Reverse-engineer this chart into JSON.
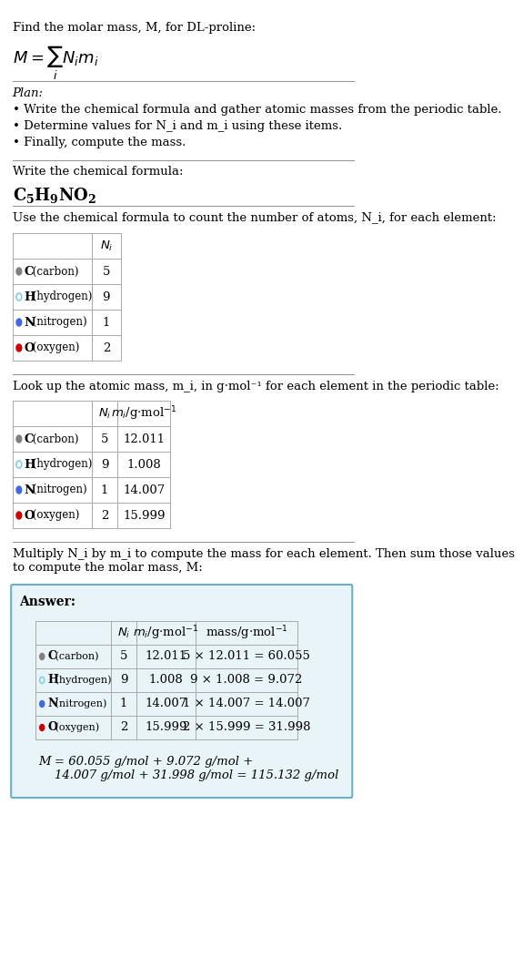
{
  "title_line": "Find the molar mass, M, for DL-proline:",
  "formula_label": "M = Σ N_i m_i",
  "plan_header": "Plan:",
  "plan_bullets": [
    "• Write the chemical formula and gather atomic masses from the periodic table.",
    "• Determine values for N_i and m_i using these items.",
    "• Finally, compute the mass."
  ],
  "formula_header": "Write the chemical formula:",
  "chemical_formula": "C₅H₉NO₂",
  "table1_header": "Use the chemical formula to count the number of atoms, N_i, for each element:",
  "table2_header": "Look up the atomic mass, m_i, in g·mol⁻¹ for each element in the periodic table:",
  "table3_header": "Multiply N_i by m_i to compute the mass for each element. Then sum those values\nto compute the molar mass, M:",
  "elements": [
    "C (carbon)",
    "H (hydrogen)",
    "N (nitrogen)",
    "O (oxygen)"
  ],
  "element_symbols": [
    "C",
    "H",
    "N",
    "O"
  ],
  "Ni": [
    5,
    9,
    1,
    2
  ],
  "mi": [
    12.011,
    1.008,
    14.007,
    15.999
  ],
  "mass": [
    60.055,
    9.072,
    14.007,
    31.998
  ],
  "mass_expr": [
    "5 × 12.011 = 60.055",
    "9 × 1.008 = 9.072",
    "1 × 14.007 = 14.007",
    "2 × 15.999 = 31.998"
  ],
  "dot_colors": [
    "#808080",
    "#ffffff",
    "#4169e1",
    "#cc0000"
  ],
  "dot_outline": [
    "#808080",
    "#87ceeb",
    "#4169e1",
    "#cc0000"
  ],
  "answer_label": "Answer:",
  "final_eq": "M = 60.055 g/mol + 9.072 g/mol +\n    14.007 g/mol + 31.998 g/mol = 115.132 g/mol",
  "answer_bg": "#e8f4f8",
  "answer_border": "#6ab0cc",
  "bg_color": "#ffffff",
  "text_color": "#000000",
  "table_border_color": "#cccccc",
  "font_size": 9.5,
  "small_font": 8.5
}
